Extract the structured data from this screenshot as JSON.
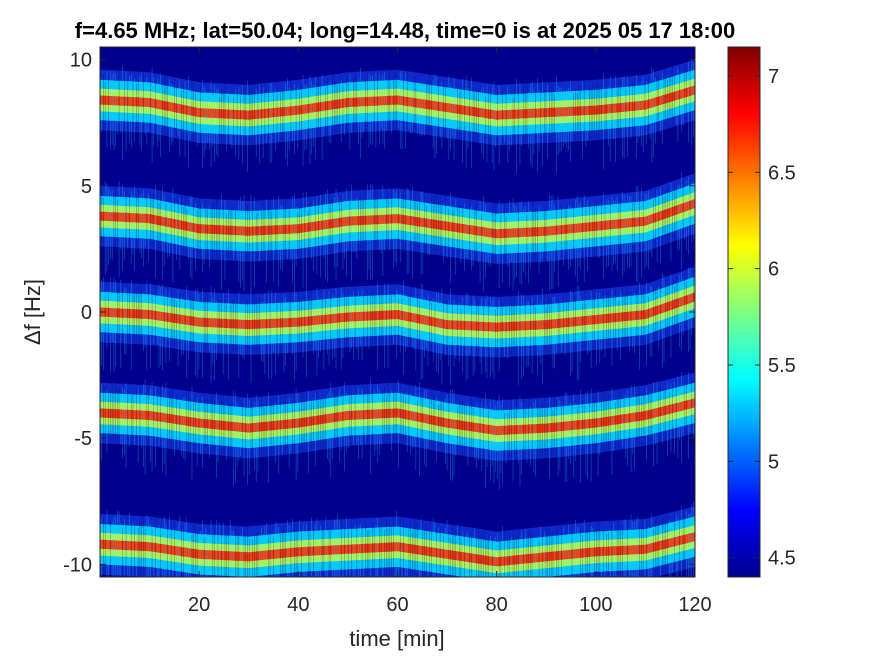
{
  "chart_data": {
    "type": "heatmap",
    "title": "f=4.65 MHz;  lat=50.04; long=14.48, time=0 is at 2025 05 17 18:00",
    "xlabel": "time [min]",
    "ylabel": "Δf [Hz]",
    "xlim": [
      0,
      120
    ],
    "ylim": [
      -10.5,
      10.5
    ],
    "x_ticks": [
      20,
      40,
      60,
      80,
      100,
      120
    ],
    "y_ticks": [
      10,
      5,
      0,
      -5,
      -10
    ],
    "colorbar": {
      "colormap": "jet",
      "range": [
        4.4,
        7.15
      ],
      "ticks": [
        7,
        6.5,
        6,
        5.5,
        5,
        4.5
      ]
    },
    "background_color": "#00008f",
    "traces": [
      {
        "name_hint": "band at +8 Hz",
        "points": [
          [
            0,
            8.4
          ],
          [
            10,
            8.3
          ],
          [
            20,
            7.9
          ],
          [
            30,
            7.8
          ],
          [
            40,
            8.0
          ],
          [
            50,
            8.3
          ],
          [
            60,
            8.4
          ],
          [
            70,
            8.1
          ],
          [
            80,
            7.8
          ],
          [
            90,
            7.9
          ],
          [
            100,
            8.0
          ],
          [
            110,
            8.2
          ],
          [
            120,
            8.8
          ]
        ]
      },
      {
        "name_hint": "band at +3.5 Hz",
        "points": [
          [
            0,
            3.8
          ],
          [
            10,
            3.7
          ],
          [
            20,
            3.3
          ],
          [
            30,
            3.2
          ],
          [
            40,
            3.3
          ],
          [
            50,
            3.6
          ],
          [
            60,
            3.7
          ],
          [
            70,
            3.4
          ],
          [
            80,
            3.1
          ],
          [
            90,
            3.2
          ],
          [
            100,
            3.4
          ],
          [
            110,
            3.6
          ],
          [
            120,
            4.3
          ]
        ]
      },
      {
        "name_hint": "band at 0 Hz",
        "points": [
          [
            0,
            0.0
          ],
          [
            10,
            -0.1
          ],
          [
            20,
            -0.4
          ],
          [
            30,
            -0.5
          ],
          [
            40,
            -0.4
          ],
          [
            50,
            -0.2
          ],
          [
            60,
            -0.1
          ],
          [
            70,
            -0.5
          ],
          [
            80,
            -0.6
          ],
          [
            90,
            -0.5
          ],
          [
            100,
            -0.3
          ],
          [
            110,
            -0.1
          ],
          [
            120,
            0.6
          ]
        ]
      },
      {
        "name_hint": "band at -4 Hz",
        "points": [
          [
            0,
            -4.0
          ],
          [
            10,
            -4.1
          ],
          [
            20,
            -4.4
          ],
          [
            30,
            -4.6
          ],
          [
            40,
            -4.4
          ],
          [
            50,
            -4.1
          ],
          [
            60,
            -4.0
          ],
          [
            70,
            -4.4
          ],
          [
            80,
            -4.7
          ],
          [
            90,
            -4.6
          ],
          [
            100,
            -4.4
          ],
          [
            110,
            -4.1
          ],
          [
            120,
            -3.6
          ]
        ]
      },
      {
        "name_hint": "band at -9.5 Hz",
        "points": [
          [
            0,
            -9.2
          ],
          [
            10,
            -9.3
          ],
          [
            20,
            -9.6
          ],
          [
            30,
            -9.7
          ],
          [
            40,
            -9.5
          ],
          [
            50,
            -9.4
          ],
          [
            60,
            -9.3
          ],
          [
            70,
            -9.6
          ],
          [
            80,
            -9.9
          ],
          [
            90,
            -9.7
          ],
          [
            100,
            -9.5
          ],
          [
            110,
            -9.4
          ],
          [
            120,
            -8.9
          ]
        ]
      }
    ]
  }
}
